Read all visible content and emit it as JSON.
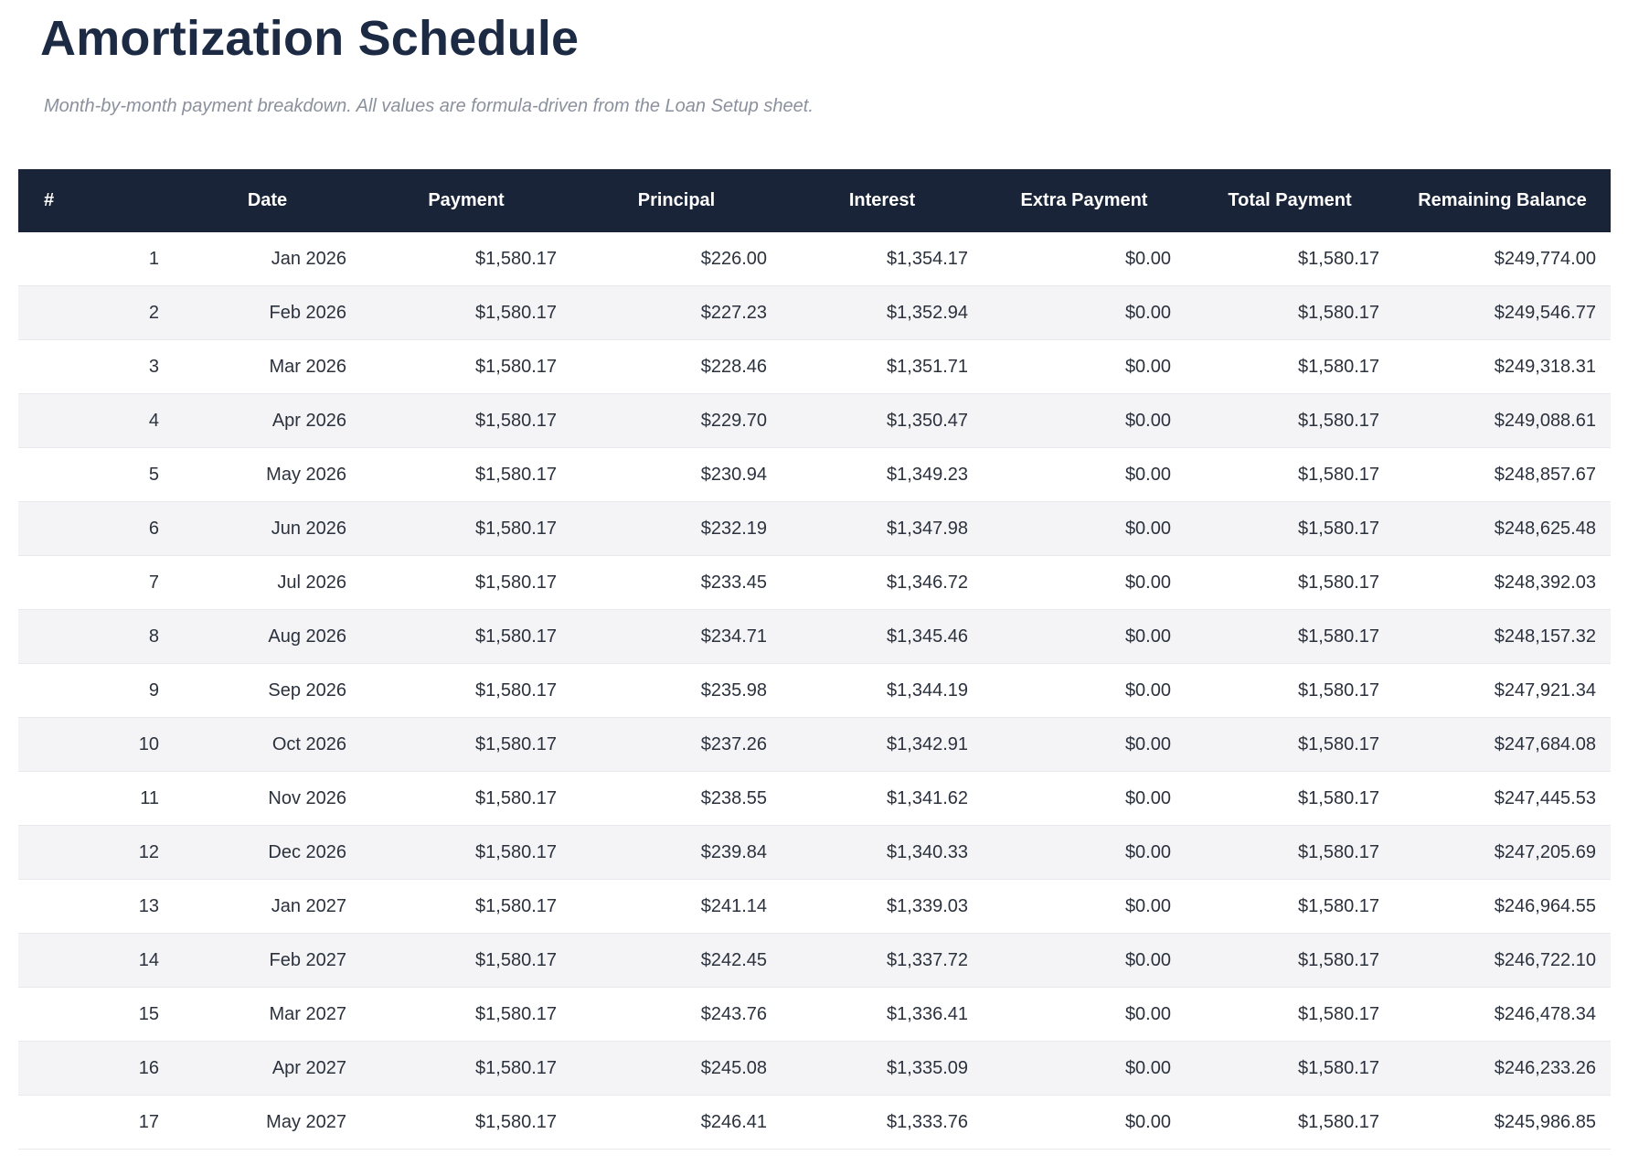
{
  "page": {
    "title": "Amortization Schedule",
    "subtitle": "Month-by-month payment breakdown. All values are formula-driven from the Loan Setup sheet."
  },
  "colors": {
    "header_bg": "#1a2439",
    "header_text": "#ffffff",
    "title_text": "#1d2a44",
    "subtitle_text": "#8b919c",
    "body_text": "#2b313d",
    "row_alt_bg": "#f4f4f6",
    "row_border": "#e7e9ec"
  },
  "table": {
    "columns": [
      "#",
      "Date",
      "Payment",
      "Principal",
      "Interest",
      "Extra Payment",
      "Total Payment",
      "Remaining Balance"
    ],
    "column_keys": [
      "n",
      "date",
      "payment",
      "principal",
      "interest",
      "extra",
      "total",
      "balance"
    ],
    "rows": [
      {
        "n": "1",
        "date": "Jan 2026",
        "payment": "$1,580.17",
        "principal": "$226.00",
        "interest": "$1,354.17",
        "extra": "$0.00",
        "total": "$1,580.17",
        "balance": "$249,774.00"
      },
      {
        "n": "2",
        "date": "Feb 2026",
        "payment": "$1,580.17",
        "principal": "$227.23",
        "interest": "$1,352.94",
        "extra": "$0.00",
        "total": "$1,580.17",
        "balance": "$249,546.77"
      },
      {
        "n": "3",
        "date": "Mar 2026",
        "payment": "$1,580.17",
        "principal": "$228.46",
        "interest": "$1,351.71",
        "extra": "$0.00",
        "total": "$1,580.17",
        "balance": "$249,318.31"
      },
      {
        "n": "4",
        "date": "Apr 2026",
        "payment": "$1,580.17",
        "principal": "$229.70",
        "interest": "$1,350.47",
        "extra": "$0.00",
        "total": "$1,580.17",
        "balance": "$249,088.61"
      },
      {
        "n": "5",
        "date": "May 2026",
        "payment": "$1,580.17",
        "principal": "$230.94",
        "interest": "$1,349.23",
        "extra": "$0.00",
        "total": "$1,580.17",
        "balance": "$248,857.67"
      },
      {
        "n": "6",
        "date": "Jun 2026",
        "payment": "$1,580.17",
        "principal": "$232.19",
        "interest": "$1,347.98",
        "extra": "$0.00",
        "total": "$1,580.17",
        "balance": "$248,625.48"
      },
      {
        "n": "7",
        "date": "Jul 2026",
        "payment": "$1,580.17",
        "principal": "$233.45",
        "interest": "$1,346.72",
        "extra": "$0.00",
        "total": "$1,580.17",
        "balance": "$248,392.03"
      },
      {
        "n": "8",
        "date": "Aug 2026",
        "payment": "$1,580.17",
        "principal": "$234.71",
        "interest": "$1,345.46",
        "extra": "$0.00",
        "total": "$1,580.17",
        "balance": "$248,157.32"
      },
      {
        "n": "9",
        "date": "Sep 2026",
        "payment": "$1,580.17",
        "principal": "$235.98",
        "interest": "$1,344.19",
        "extra": "$0.00",
        "total": "$1,580.17",
        "balance": "$247,921.34"
      },
      {
        "n": "10",
        "date": "Oct 2026",
        "payment": "$1,580.17",
        "principal": "$237.26",
        "interest": "$1,342.91",
        "extra": "$0.00",
        "total": "$1,580.17",
        "balance": "$247,684.08"
      },
      {
        "n": "11",
        "date": "Nov 2026",
        "payment": "$1,580.17",
        "principal": "$238.55",
        "interest": "$1,341.62",
        "extra": "$0.00",
        "total": "$1,580.17",
        "balance": "$247,445.53"
      },
      {
        "n": "12",
        "date": "Dec 2026",
        "payment": "$1,580.17",
        "principal": "$239.84",
        "interest": "$1,340.33",
        "extra": "$0.00",
        "total": "$1,580.17",
        "balance": "$247,205.69"
      },
      {
        "n": "13",
        "date": "Jan 2027",
        "payment": "$1,580.17",
        "principal": "$241.14",
        "interest": "$1,339.03",
        "extra": "$0.00",
        "total": "$1,580.17",
        "balance": "$246,964.55"
      },
      {
        "n": "14",
        "date": "Feb 2027",
        "payment": "$1,580.17",
        "principal": "$242.45",
        "interest": "$1,337.72",
        "extra": "$0.00",
        "total": "$1,580.17",
        "balance": "$246,722.10"
      },
      {
        "n": "15",
        "date": "Mar 2027",
        "payment": "$1,580.17",
        "principal": "$243.76",
        "interest": "$1,336.41",
        "extra": "$0.00",
        "total": "$1,580.17",
        "balance": "$246,478.34"
      },
      {
        "n": "16",
        "date": "Apr 2027",
        "payment": "$1,580.17",
        "principal": "$245.08",
        "interest": "$1,335.09",
        "extra": "$0.00",
        "total": "$1,580.17",
        "balance": "$246,233.26"
      },
      {
        "n": "17",
        "date": "May 2027",
        "payment": "$1,580.17",
        "principal": "$246.41",
        "interest": "$1,333.76",
        "extra": "$0.00",
        "total": "$1,580.17",
        "balance": "$245,986.85"
      }
    ]
  }
}
